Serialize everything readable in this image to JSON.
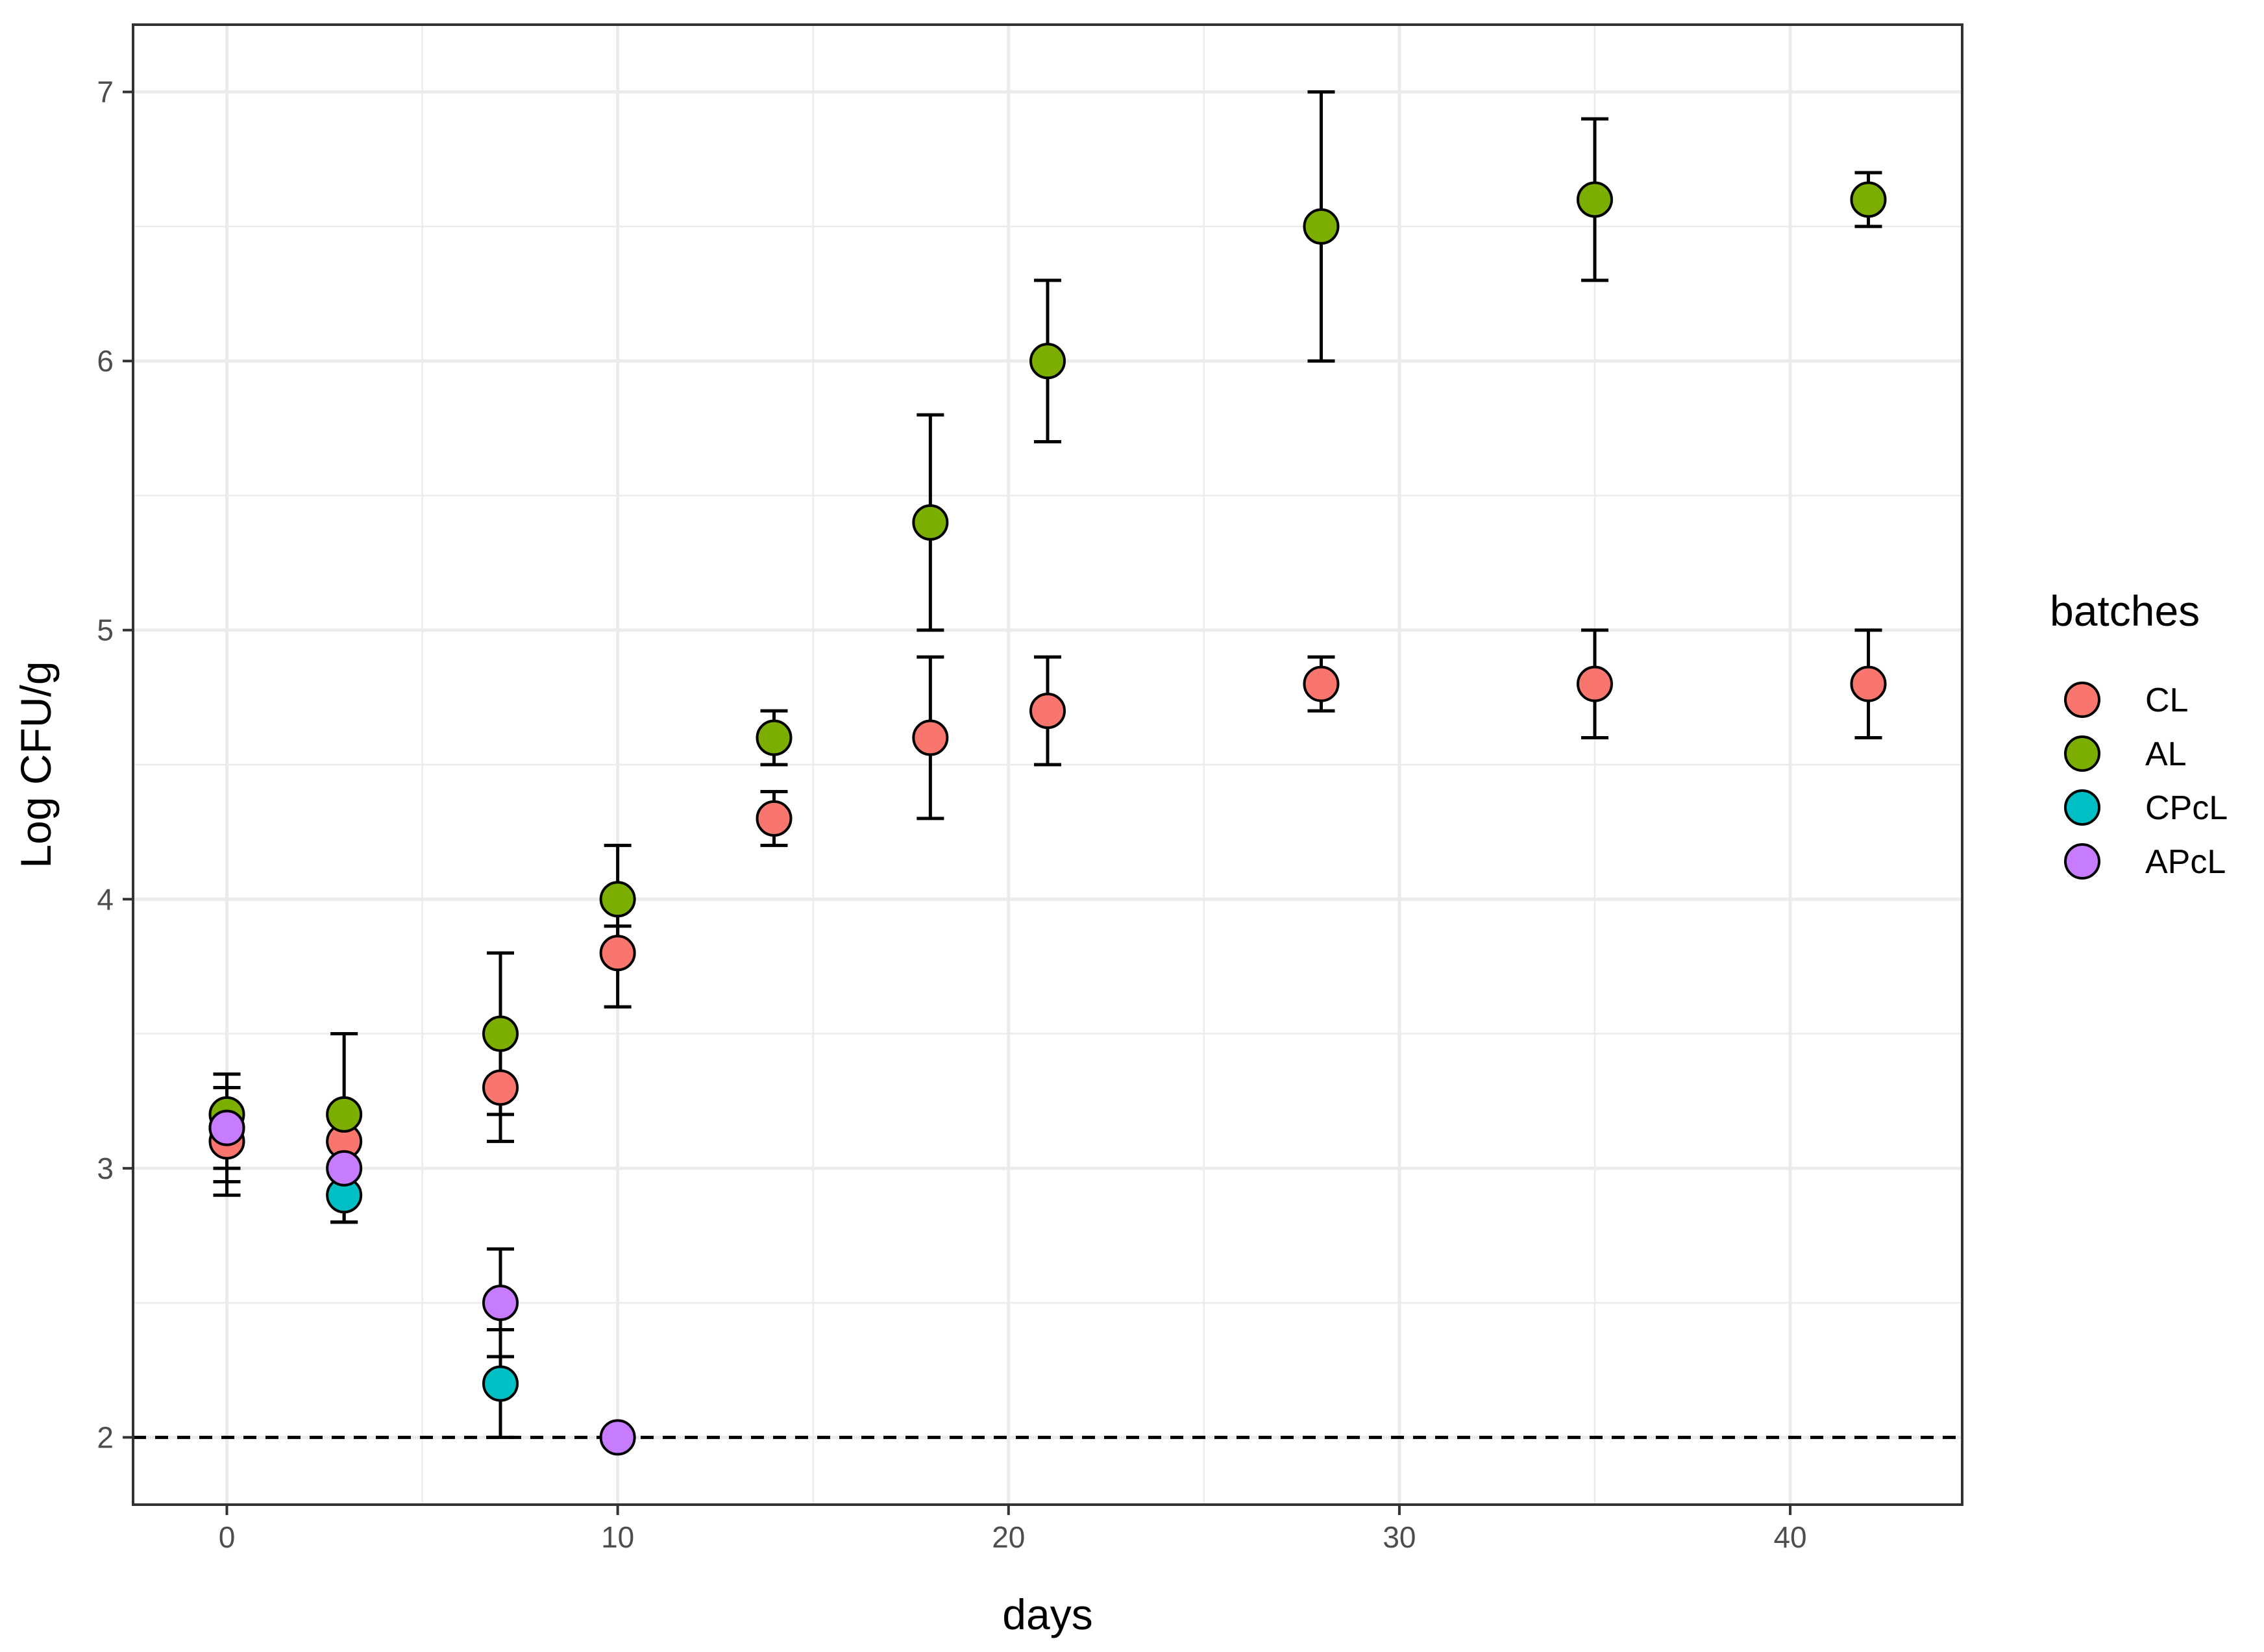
{
  "chart_data": {
    "type": "scatter",
    "title": "",
    "xlabel": "days",
    "ylabel": "Log CFU/g",
    "xlim": [
      -2.4,
      44.4
    ],
    "ylim": [
      1.75,
      7.25
    ],
    "x_ticks": [
      0,
      10,
      20,
      30,
      40
    ],
    "x_tick_labels": [
      "0",
      "10",
      "20",
      "30",
      "40"
    ],
    "y_ticks": [
      2,
      3,
      4,
      5,
      6,
      7
    ],
    "y_tick_labels": [
      "2",
      "3",
      "4",
      "5",
      "6",
      "7"
    ],
    "grid": true,
    "reference_line": {
      "y": 2,
      "style": "dashed"
    },
    "legend": {
      "title": "batches",
      "position": "right"
    },
    "series": [
      {
        "name": "CL",
        "color": "#F8766D",
        "points": [
          {
            "x": 0,
            "y": 3.1,
            "lo": 2.9,
            "hi": 3.3
          },
          {
            "x": 3,
            "y": 3.1,
            "lo": 3.0,
            "hi": 3.2
          },
          {
            "x": 7,
            "y": 3.3,
            "lo": 3.1,
            "hi": 3.5
          },
          {
            "x": 10,
            "y": 3.8,
            "lo": 3.6,
            "hi": 3.9
          },
          {
            "x": 14,
            "y": 4.3,
            "lo": 4.2,
            "hi": 4.4
          },
          {
            "x": 18,
            "y": 4.6,
            "lo": 4.3,
            "hi": 4.9
          },
          {
            "x": 21,
            "y": 4.7,
            "lo": 4.5,
            "hi": 4.9
          },
          {
            "x": 28,
            "y": 4.8,
            "lo": 4.7,
            "hi": 4.9
          },
          {
            "x": 35,
            "y": 4.8,
            "lo": 4.6,
            "hi": 5.0
          },
          {
            "x": 42,
            "y": 4.8,
            "lo": 4.6,
            "hi": 5.0
          }
        ]
      },
      {
        "name": "AL",
        "color": "#7CAE00",
        "points": [
          {
            "x": 0,
            "y": 3.2,
            "lo": 3.1,
            "hi": 3.35
          },
          {
            "x": 3,
            "y": 3.2,
            "lo": 2.9,
            "hi": 3.5
          },
          {
            "x": 7,
            "y": 3.5,
            "lo": 3.2,
            "hi": 3.8
          },
          {
            "x": 10,
            "y": 4.0,
            "lo": 3.8,
            "hi": 4.2
          },
          {
            "x": 14,
            "y": 4.6,
            "lo": 4.5,
            "hi": 4.7
          },
          {
            "x": 18,
            "y": 5.4,
            "lo": 5.0,
            "hi": 5.8
          },
          {
            "x": 21,
            "y": 6.0,
            "lo": 5.7,
            "hi": 6.3
          },
          {
            "x": 28,
            "y": 6.5,
            "lo": 6.0,
            "hi": 7.0
          },
          {
            "x": 35,
            "y": 6.6,
            "lo": 6.3,
            "hi": 6.9
          },
          {
            "x": 42,
            "y": 6.6,
            "lo": 6.5,
            "hi": 6.7
          }
        ]
      },
      {
        "name": "CPcL",
        "color": "#00BFC4",
        "points": [
          {
            "x": 0,
            "y": 3.15,
            "lo": 2.95,
            "hi": 3.3
          },
          {
            "x": 3,
            "y": 2.9,
            "lo": 2.8,
            "hi": 3.0
          },
          {
            "x": 7,
            "y": 2.2,
            "lo": 2.0,
            "hi": 2.4
          }
        ]
      },
      {
        "name": "APcL",
        "color": "#C77CFF",
        "points": [
          {
            "x": 0,
            "y": 3.15,
            "lo": 3.0,
            "hi": 3.3
          },
          {
            "x": 3,
            "y": 3.0,
            "lo": 2.8,
            "hi": 3.1
          },
          {
            "x": 7,
            "y": 2.5,
            "lo": 2.3,
            "hi": 2.7
          },
          {
            "x": 10,
            "y": 2.0,
            "lo": 2.0,
            "hi": 2.0
          }
        ]
      }
    ]
  }
}
